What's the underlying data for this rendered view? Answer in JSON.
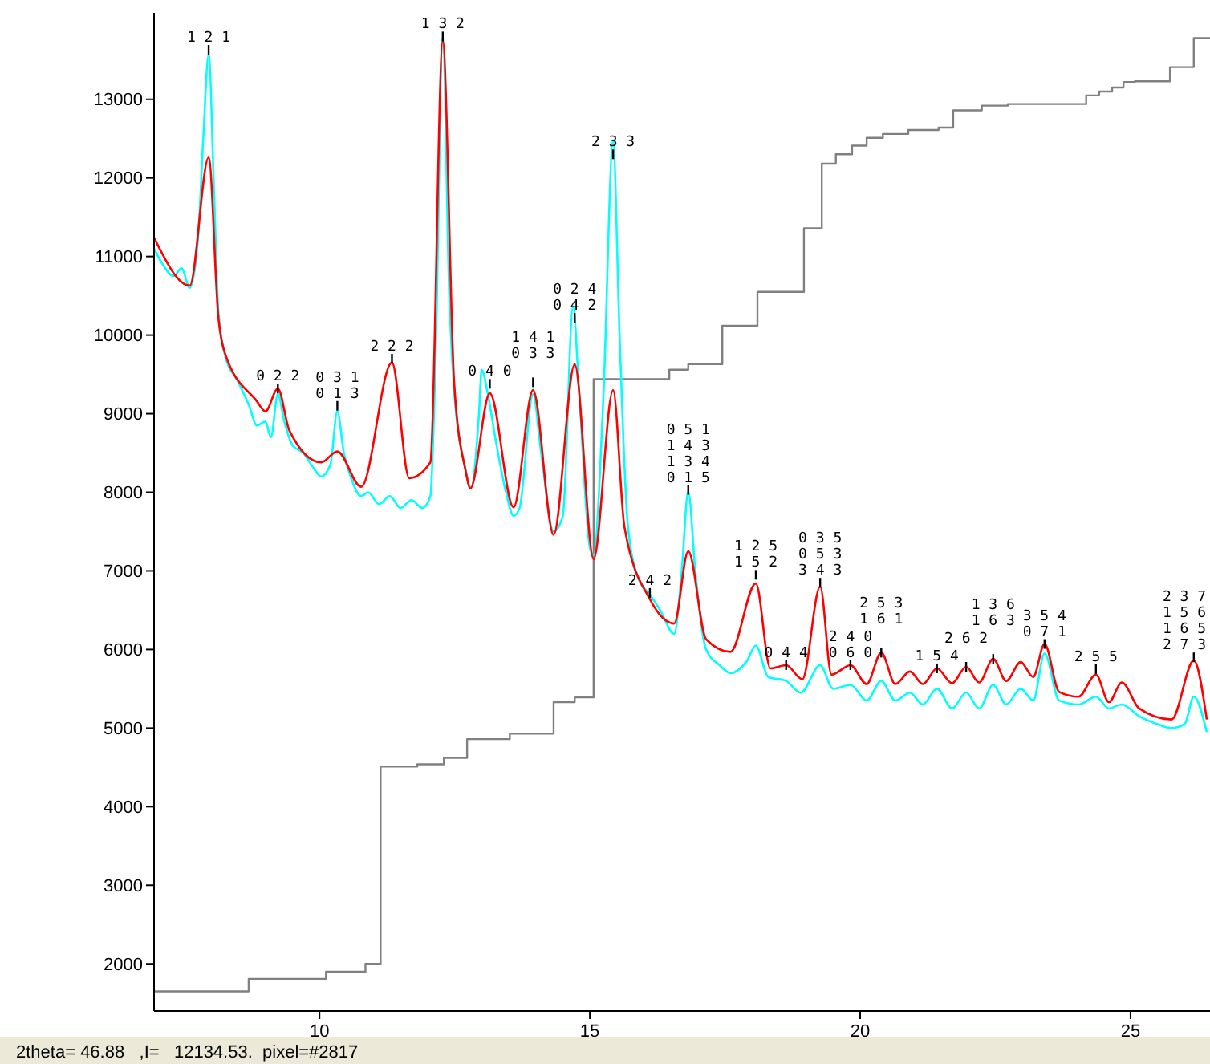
{
  "chart_data": {
    "type": "line",
    "xlim": [
      6.94,
      26.47
    ],
    "ylim": [
      1400,
      14100
    ],
    "xticks": [
      10,
      15,
      20,
      25
    ],
    "yticks": [
      2000,
      3000,
      4000,
      5000,
      6000,
      7000,
      8000,
      9000,
      10000,
      11000,
      12000,
      13000
    ],
    "series": [
      {
        "type": "step",
        "color": "#808080",
        "x": [
          6.94,
          8.69,
          10.12,
          10.85,
          11.13,
          11.81,
          12.3,
          12.73,
          13.52,
          14.33,
          14.72,
          15.07,
          16.47,
          16.82,
          17.45,
          18.1,
          18.96,
          19.29,
          19.55,
          19.85,
          20.12,
          20.42,
          20.89,
          21.45,
          21.72,
          22.25,
          22.73,
          24.18,
          24.42,
          24.66,
          24.87,
          25.08,
          25.73,
          26.17,
          26.47
        ],
        "values": [
          1650,
          1810,
          1900,
          2000,
          4510,
          4540,
          4620,
          4860,
          4930,
          5330,
          5390,
          9440,
          9560,
          9630,
          10120,
          10550,
          11360,
          12180,
          12300,
          12410,
          12510,
          12560,
          12610,
          12640,
          12860,
          12920,
          12940,
          13050,
          13100,
          13150,
          13220,
          13230,
          13410,
          13780,
          13780
        ]
      },
      {
        "type": "line",
        "color": "#00ffff",
        "x": [
          6.94,
          7.1,
          7.3,
          7.45,
          7.6,
          7.75,
          7.85,
          7.95,
          8.05,
          8.13,
          8.25,
          8.5,
          8.7,
          8.84,
          9.0,
          9.1,
          9.23,
          9.35,
          9.5,
          9.7,
          9.9,
          10.03,
          10.2,
          10.33,
          10.45,
          10.6,
          10.77,
          10.9,
          11.1,
          11.3,
          11.5,
          11.7,
          11.9,
          12.05,
          12.15,
          12.28,
          12.4,
          12.49,
          12.7,
          12.8,
          12.95,
          13.0,
          13.1,
          13.25,
          13.45,
          13.59,
          13.7,
          13.95,
          14.1,
          14.33,
          14.5,
          14.69,
          14.8,
          15.0,
          15.07,
          15.25,
          15.43,
          15.55,
          15.7,
          15.9,
          16.11,
          16.3,
          16.56,
          16.7,
          16.82,
          16.95,
          17.15,
          17.4,
          17.6,
          17.9,
          18.07,
          18.3,
          18.63,
          18.9,
          19.26,
          19.5,
          19.82,
          20.12,
          20.39,
          20.65,
          20.92,
          21.16,
          21.42,
          21.7,
          21.96,
          22.2,
          22.46,
          22.7,
          22.97,
          23.2,
          23.41,
          23.68,
          24.04,
          24.36,
          24.6,
          24.84,
          25.16,
          25.5,
          25.76,
          26.0,
          26.17,
          26.41
        ],
        "values": [
          11100,
          10900,
          10750,
          10850,
          10600,
          11200,
          12500,
          13570,
          11800,
          10300,
          9750,
          9400,
          9100,
          8850,
          8900,
          8700,
          9250,
          8900,
          8600,
          8500,
          8300,
          8200,
          8350,
          9030,
          8500,
          8150,
          7950,
          8000,
          7850,
          7950,
          7800,
          7900,
          7800,
          7950,
          9800,
          13780,
          10500,
          9300,
          8300,
          8050,
          9000,
          9560,
          9300,
          8700,
          8000,
          7700,
          7800,
          9250,
          8500,
          7500,
          7700,
          10360,
          9300,
          7300,
          7200,
          9200,
          12470,
          10000,
          7600,
          6900,
          6700,
          6500,
          6200,
          7000,
          8010,
          7000,
          6000,
          5800,
          5700,
          5850,
          6050,
          5650,
          5600,
          5450,
          5800,
          5500,
          5550,
          5350,
          5600,
          5350,
          5450,
          5300,
          5500,
          5250,
          5450,
          5250,
          5550,
          5300,
          5500,
          5350,
          5950,
          5350,
          5300,
          5400,
          5250,
          5300,
          5150,
          5050,
          5000,
          5050,
          5400,
          4950
        ]
      },
      {
        "type": "line",
        "color": "#ff0000",
        "x": [
          6.94,
          7.6,
          7.95,
          8.13,
          8.25,
          8.84,
          9.0,
          9.23,
          9.44,
          10.03,
          10.33,
          10.77,
          11.34,
          11.66,
          12.05,
          12.28,
          12.49,
          12.7,
          12.79,
          13.15,
          13.59,
          13.95,
          14.33,
          14.72,
          15.07,
          15.43,
          15.64,
          16.11,
          16.56,
          16.82,
          17.15,
          17.6,
          18.07,
          18.34,
          18.63,
          18.93,
          19.26,
          19.47,
          19.82,
          20.12,
          20.39,
          20.65,
          20.92,
          21.16,
          21.42,
          21.7,
          21.96,
          22.2,
          22.46,
          22.7,
          22.97,
          23.2,
          23.41,
          23.68,
          24.04,
          24.36,
          24.6,
          24.84,
          25.16,
          25.76,
          26.17,
          26.41
        ],
        "values": [
          11240,
          10630,
          12260,
          10220,
          9770,
          9160,
          9030,
          9320,
          8790,
          8380,
          8520,
          8070,
          9650,
          8180,
          8380,
          13740,
          9400,
          8280,
          8050,
          9260,
          7810,
          9300,
          7460,
          9630,
          7150,
          9300,
          7560,
          6640,
          6330,
          7250,
          6130,
          5970,
          6840,
          5760,
          5800,
          5620,
          6800,
          5680,
          5800,
          5560,
          5960,
          5560,
          5720,
          5560,
          5760,
          5570,
          5780,
          5580,
          5880,
          5600,
          5840,
          5650,
          6070,
          5460,
          5400,
          5680,
          5330,
          5580,
          5250,
          5110,
          5860,
          5110
        ]
      }
    ],
    "annotations": [
      {
        "text": "1 2 1",
        "x": 7.95,
        "y": 13630
      },
      {
        "text": "1 3 2",
        "x": 12.28,
        "y": 13800
      },
      {
        "text": "0 2 2",
        "x": 9.23,
        "y": 9320
      },
      {
        "text": "0 3 1\n0 1 3",
        "x": 10.33,
        "y": 9100
      },
      {
        "text": "2 2 2",
        "x": 11.34,
        "y": 9700
      },
      {
        "text": "0 4 0",
        "x": 13.15,
        "y": 9380
      },
      {
        "text": "1 4 1\n0 3 3",
        "x": 13.95,
        "y": 9400
      },
      {
        "text": "0 2 4\n0 4 2",
        "x": 14.72,
        "y": 10220
      },
      {
        "text": "2 3 3",
        "x": 15.43,
        "y": 12300
      },
      {
        "text": "2 4 2",
        "x": 16.11,
        "y": 6720
      },
      {
        "text": "0 5 1\n1 4 3\n1 3 4\n0 1 5",
        "x": 16.82,
        "y": 8030
      },
      {
        "text": "1 2 5\n1 5 2",
        "x": 18.07,
        "y": 6950
      },
      {
        "text": "0 4 4",
        "x": 18.63,
        "y": 5800
      },
      {
        "text": "0 3 5\n0 5 3\n3 4 3",
        "x": 19.26,
        "y": 6850
      },
      {
        "text": "2 4 0\n0 6 0",
        "x": 19.82,
        "y": 5800
      },
      {
        "text": "2 5 3\n1 6 1",
        "x": 20.39,
        "y": 5960
      },
      {
        "text": "1 5 4",
        "x": 21.42,
        "y": 5760
      },
      {
        "text": "2 6 2",
        "x": 21.96,
        "y": 5780
      },
      {
        "text": "1 3 6\n1 6 3",
        "x": 22.46,
        "y": 5880
      },
      {
        "text": "3 5 4\n0 7 1",
        "x": 23.41,
        "y": 6070
      },
      {
        "text": "2 5 5",
        "x": 24.36,
        "y": 5750
      },
      {
        "text": "2 3 7\n1 5 6\n1 6 5\n2 7 3",
        "x": 26.17,
        "y": 5900
      },
      "2theta= 46.88   ,I=   12134.53.  pixel=#2817"
    ]
  }
}
